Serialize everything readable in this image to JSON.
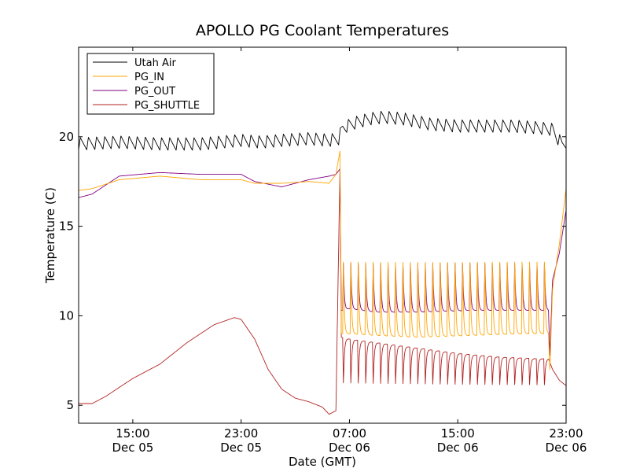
{
  "chart_data": {
    "type": "line",
    "title": "APOLLO PG Coolant Temperatures",
    "xlabel": "Date (GMT)",
    "ylabel": "Temperature (C)",
    "x_unit": "hours since 00:00 Dec 05 GMT",
    "xlim": [
      11.0,
      47.0
    ],
    "ylim": [
      4.0,
      25.0
    ],
    "yticks": [
      5,
      10,
      15,
      20
    ],
    "xticks": [
      {
        "value": 15,
        "label_time": "15:00",
        "label_date": "Dec 05"
      },
      {
        "value": 23,
        "label_time": "23:00",
        "label_date": "Dec 05"
      },
      {
        "value": 31,
        "label_time": "07:00",
        "label_date": "Dec 06"
      },
      {
        "value": 39,
        "label_time": "15:00",
        "label_date": "Dec 06"
      },
      {
        "value": 47,
        "label_time": "23:00",
        "label_date": "Dec 06"
      }
    ],
    "legend_position": "top-left",
    "series": [
      {
        "name": "Utah Air",
        "color": "#000000",
        "x": [
          11.0,
          14.0,
          17.0,
          20.0,
          23.0,
          24.5,
          26.0,
          28.0,
          29.5,
          30.2,
          30.5,
          31.5,
          32.5,
          33.5,
          35.0,
          37.0,
          39.0,
          41.0,
          43.0,
          45.0,
          46.0,
          46.3,
          46.7,
          47.0
        ],
        "values": [
          19.6,
          19.7,
          19.6,
          19.6,
          19.8,
          19.7,
          19.8,
          19.9,
          19.8,
          19.9,
          20.5,
          20.8,
          21.0,
          21.1,
          21.0,
          20.7,
          20.6,
          20.6,
          20.6,
          20.5,
          20.4,
          20.0,
          19.6,
          19.7
        ],
        "oscillation_amplitude": 0.35,
        "oscillation_period_h": 0.6
      },
      {
        "name": "PG_IN",
        "color": "#ffa500",
        "x": [
          11.0,
          12.0,
          14.0,
          17.0,
          20.0,
          23.0,
          24.0,
          26.0,
          28.0,
          29.5,
          30.0,
          30.3,
          30.4,
          31.0,
          33.0,
          36.0,
          40.0,
          44.0,
          45.7,
          45.8,
          46.0,
          46.5,
          47.0
        ],
        "values": [
          17.0,
          17.1,
          17.6,
          17.8,
          17.6,
          17.6,
          17.4,
          17.4,
          17.5,
          17.4,
          17.9,
          19.2,
          9.0,
          9.0,
          8.9,
          8.8,
          8.9,
          9.0,
          9.0,
          7.0,
          11.5,
          14.0,
          17.1
        ],
        "cycling_window": [
          30.5,
          45.7
        ],
        "cycling_peak": 13.4,
        "cycling_period_h": 0.55
      },
      {
        "name": "PG_OUT",
        "color": "#800080",
        "x": [
          11.0,
          12.0,
          14.0,
          17.0,
          20.0,
          23.0,
          24.0,
          26.0,
          28.0,
          29.5,
          30.0,
          30.3,
          30.4,
          31.0,
          33.0,
          36.0,
          40.0,
          44.0,
          45.7,
          45.8,
          46.0,
          46.5,
          47.0
        ],
        "values": [
          16.6,
          16.8,
          17.8,
          18.0,
          17.9,
          17.9,
          17.5,
          17.2,
          17.6,
          17.8,
          17.9,
          18.2,
          10.3,
          10.4,
          10.2,
          10.2,
          10.3,
          10.3,
          10.3,
          7.8,
          12.0,
          13.5,
          15.9
        ],
        "cycling_window": [
          30.5,
          45.7
        ],
        "cycling_peak": 13.2,
        "cycling_period_h": 0.55
      },
      {
        "name": "PG_SHUTTLE",
        "color": "#b22222",
        "x": [
          11.0,
          12.0,
          13.0,
          15.0,
          17.0,
          19.0,
          21.0,
          22.5,
          23.0,
          24.0,
          25.0,
          26.0,
          27.0,
          28.0,
          29.0,
          29.5,
          30.0,
          30.3,
          30.4,
          31.0,
          33.0,
          36.0,
          39.0,
          42.0,
          45.0,
          45.7,
          46.0,
          46.5,
          47.0
        ],
        "values": [
          5.1,
          5.1,
          5.5,
          6.5,
          7.3,
          8.5,
          9.5,
          9.9,
          9.8,
          8.7,
          7.0,
          5.9,
          5.4,
          5.2,
          4.9,
          4.5,
          4.7,
          18.2,
          8.8,
          8.7,
          8.5,
          8.2,
          7.9,
          7.7,
          7.6,
          7.6,
          7.0,
          6.4,
          6.1
        ],
        "cycling_window": [
          30.5,
          45.7
        ],
        "cycling_trough": 6.0,
        "cycling_period_h": 0.55
      }
    ]
  }
}
